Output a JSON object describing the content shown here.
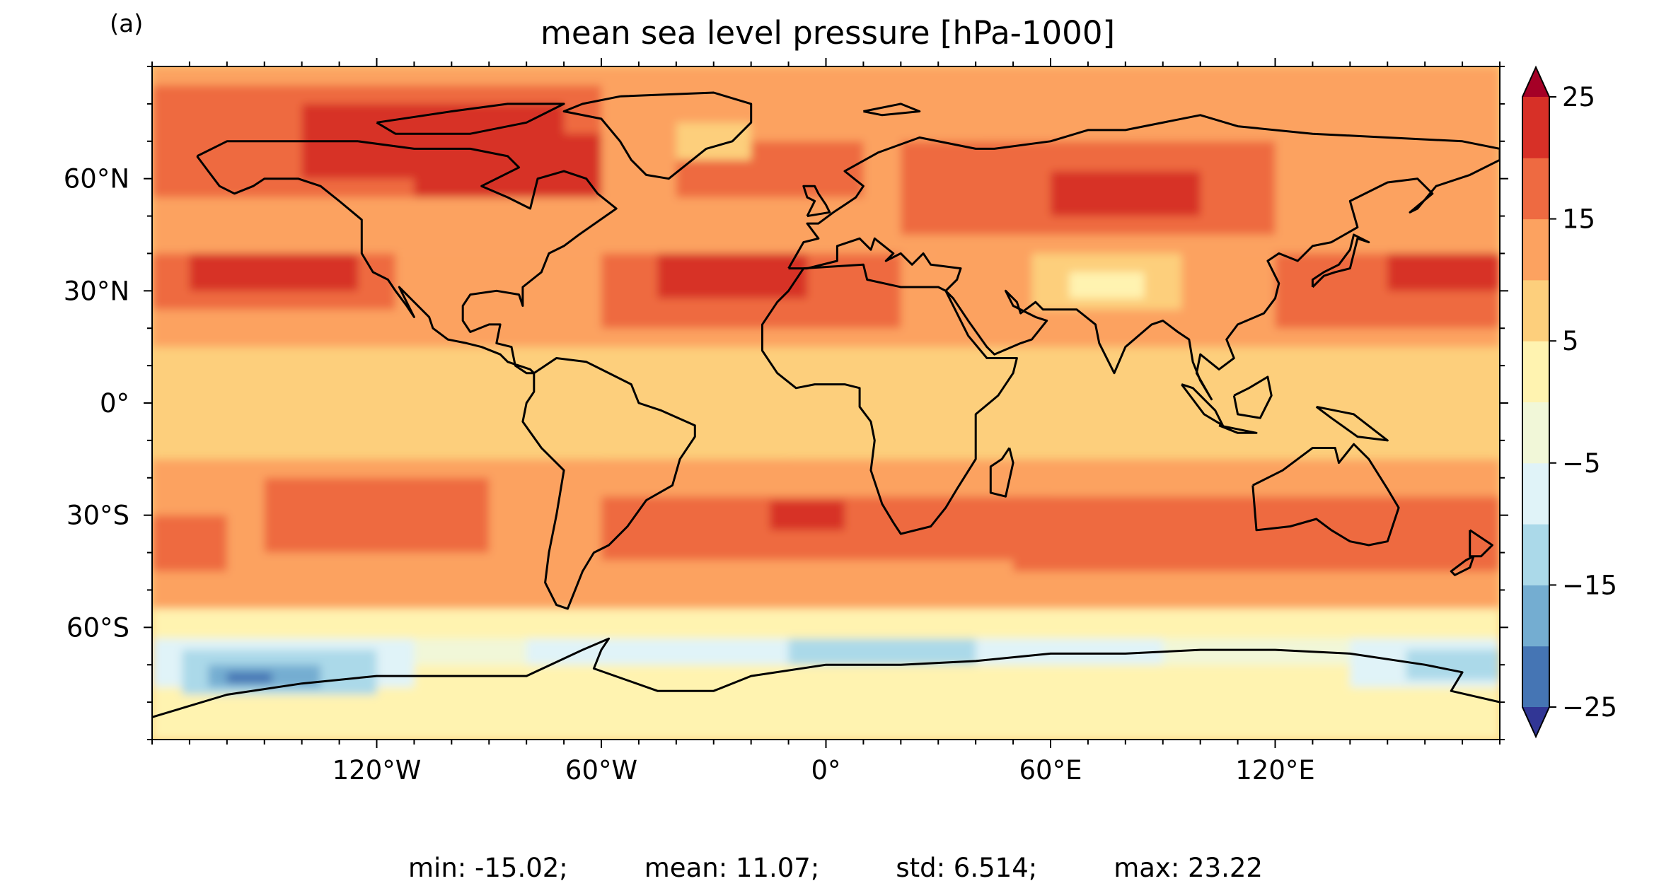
{
  "panel_label": "(a)",
  "title": "mean sea level pressure [hPa-1000]",
  "stats": {
    "min": "min: -15.02;",
    "mean": "mean: 11.07;",
    "std": "std: 6.514;",
    "max": "max: 23.22"
  },
  "map": {
    "projection": "PlateCarree",
    "lon_ticks": [
      "120°W",
      "60°W",
      "0°",
      "60°E",
      "120°E"
    ],
    "lat_ticks": [
      "60°N",
      "30°N",
      "0°",
      "30°S",
      "60°S"
    ],
    "field": "mean sea level pressure minus 1000 hPa",
    "coastlines": true
  },
  "colorbar": {
    "colormap": "RdYlBu_r",
    "extend": "both",
    "levels": [
      -25,
      -20,
      -15,
      -10,
      -5,
      0,
      5,
      10,
      15,
      20,
      25
    ],
    "tick_labels": [
      "25",
      "15",
      "5",
      "−5",
      "−15",
      "−25"
    ],
    "colors": [
      "#313695",
      "#4575b4",
      "#74add1",
      "#abd9e9",
      "#e0f3f8",
      "#f1f7d8",
      "#fff3b0",
      "#fdcf7c",
      "#fca260",
      "#ee6a41",
      "#d73027",
      "#a50026"
    ]
  }
}
